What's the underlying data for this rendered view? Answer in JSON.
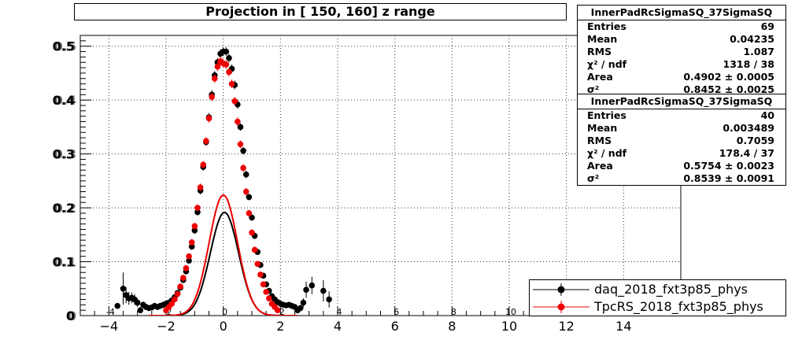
{
  "title": "Projection in [ 150, 160] z range",
  "colors": {
    "daq": "#000000",
    "tpcrs": "#ee0000",
    "grid": "#333333"
  },
  "stats": [
    {
      "name": "InnerPadRcSigmaSQ_37SigmaSQ",
      "rows": [
        {
          "label": "Entries",
          "value": "69"
        },
        {
          "label": "Mean",
          "value": "0.04235"
        },
        {
          "label": "RMS",
          "value": "1.087"
        },
        {
          "label": "χ² / ndf",
          "value": "1318 / 38"
        },
        {
          "label": "Area",
          "value": "0.4902 ± 0.0005"
        },
        {
          "label": "σ²",
          "value": "0.8452 ± 0.0025"
        }
      ]
    },
    {
      "name": "InnerPadRcSigmaSQ_37SigmaSQ",
      "rows": [
        {
          "label": "Entries",
          "value": "40"
        },
        {
          "label": "Mean",
          "value": "0.003489"
        },
        {
          "label": "RMS",
          "value": "0.7059"
        },
        {
          "label": "χ² / ndf",
          "value": "178.4 / 37"
        },
        {
          "label": "Area",
          "value": "0.5754 ± 0.0023"
        },
        {
          "label": "σ²",
          "value": "0.8539 ± 0.0091"
        }
      ]
    }
  ],
  "legend": [
    {
      "label": "daq_2018_fxt3p85_phys",
      "color": "#000000"
    },
    {
      "label": "TpcRS_2018_fxt3p85_phys",
      "color": "#ee0000"
    }
  ],
  "chart_data": {
    "type": "scatter",
    "xlim": [
      -5,
      16
    ],
    "ylim": [
      0,
      0.52
    ],
    "grid": true,
    "x_ticks": [
      -4,
      -2,
      0,
      2,
      4,
      6,
      8,
      10,
      12,
      14
    ],
    "x_tick_labels": [
      "−4",
      "−2",
      "0",
      "2",
      "4",
      "6",
      "8",
      "10",
      "12",
      "14"
    ],
    "x_ghost_ticks": [
      -4,
      -2,
      0,
      2,
      4,
      6,
      8,
      10
    ],
    "x_ghost_tick_labels": [
      "-4",
      "-2",
      "0",
      "2",
      "4",
      "6",
      "8",
      "10"
    ],
    "y_ticks": [
      0,
      0.1,
      0.2,
      0.3,
      0.4,
      0.5
    ],
    "y_tick_labels": [
      "0",
      "0.1",
      "0.2",
      "0.3",
      "0.4",
      "0.5"
    ],
    "series": [
      {
        "name": "daq_2018_fxt3p85_phys",
        "color": "#000000",
        "fit": {
          "area": 0.4902,
          "sigma2": 0.8452,
          "mean": 0.04235
        },
        "points": [
          [
            -3.7,
            0.018,
            0.005
          ],
          [
            -3.5,
            0.05,
            0.03
          ],
          [
            -3.4,
            0.038,
            0.015
          ],
          [
            -3.3,
            0.032,
            0.012
          ],
          [
            -3.2,
            0.033,
            0.01
          ],
          [
            -3.1,
            0.03,
            0.01
          ],
          [
            -3.0,
            0.024,
            0.008
          ],
          [
            -2.9,
            0.01,
            0.006
          ],
          [
            -2.8,
            0.02,
            0.006
          ],
          [
            -2.7,
            0.016,
            0.005
          ],
          [
            -2.6,
            0.014,
            0.005
          ],
          [
            -2.5,
            0.015,
            0.005
          ],
          [
            -2.4,
            0.018,
            0.005
          ],
          [
            -2.3,
            0.016,
            0.004
          ],
          [
            -2.2,
            0.018,
            0.004
          ],
          [
            -2.1,
            0.02,
            0.004
          ],
          [
            -2.0,
            0.022,
            0.004
          ],
          [
            -1.9,
            0.024,
            0.004
          ],
          [
            -1.8,
            0.028,
            0.004
          ],
          [
            -1.7,
            0.034,
            0.004
          ],
          [
            -1.6,
            0.042,
            0.004
          ],
          [
            -1.5,
            0.052,
            0.004
          ],
          [
            -1.4,
            0.066,
            0.005
          ],
          [
            -1.3,
            0.082,
            0.005
          ],
          [
            -1.2,
            0.102,
            0.005
          ],
          [
            -1.1,
            0.128,
            0.006
          ],
          [
            -1.0,
            0.158,
            0.006
          ],
          [
            -0.9,
            0.192,
            0.006
          ],
          [
            -0.8,
            0.232,
            0.007
          ],
          [
            -0.7,
            0.276,
            0.007
          ],
          [
            -0.6,
            0.322,
            0.007
          ],
          [
            -0.5,
            0.368,
            0.008
          ],
          [
            -0.4,
            0.41,
            0.008
          ],
          [
            -0.3,
            0.446,
            0.008
          ],
          [
            -0.2,
            0.47,
            0.008
          ],
          [
            -0.1,
            0.486,
            0.008
          ],
          [
            0.0,
            0.49,
            0.008
          ],
          [
            0.1,
            0.49,
            0.008
          ],
          [
            0.2,
            0.478,
            0.008
          ],
          [
            0.3,
            0.458,
            0.008
          ],
          [
            0.4,
            0.428,
            0.008
          ],
          [
            0.5,
            0.392,
            0.008
          ],
          [
            0.6,
            0.35,
            0.007
          ],
          [
            0.7,
            0.306,
            0.007
          ],
          [
            0.8,
            0.262,
            0.007
          ],
          [
            0.9,
            0.22,
            0.006
          ],
          [
            1.0,
            0.182,
            0.006
          ],
          [
            1.1,
            0.148,
            0.006
          ],
          [
            1.2,
            0.118,
            0.005
          ],
          [
            1.3,
            0.094,
            0.005
          ],
          [
            1.4,
            0.074,
            0.005
          ],
          [
            1.5,
            0.058,
            0.004
          ],
          [
            1.6,
            0.046,
            0.004
          ],
          [
            1.7,
            0.036,
            0.004
          ],
          [
            1.8,
            0.03,
            0.004
          ],
          [
            1.9,
            0.025,
            0.004
          ],
          [
            2.0,
            0.022,
            0.004
          ],
          [
            2.1,
            0.02,
            0.004
          ],
          [
            2.2,
            0.019,
            0.004
          ],
          [
            2.3,
            0.02,
            0.005
          ],
          [
            2.4,
            0.018,
            0.005
          ],
          [
            2.5,
            0.016,
            0.005
          ],
          [
            2.6,
            0.01,
            0.006
          ],
          [
            2.7,
            0.014,
            0.006
          ],
          [
            2.8,
            0.024,
            0.008
          ],
          [
            2.9,
            0.048,
            0.015
          ],
          [
            3.1,
            0.056,
            0.016
          ],
          [
            3.5,
            0.046,
            0.02
          ],
          [
            3.7,
            0.03,
            0.015
          ]
        ]
      },
      {
        "name": "TpcRS_2018_fxt3p85_phys",
        "color": "#ee0000",
        "fit": {
          "area": 0.5754,
          "sigma2": 0.8539,
          "mean": 0.003489
        },
        "points": [
          [
            -2.0,
            0.01,
            0.004
          ],
          [
            -1.9,
            0.016,
            0.004
          ],
          [
            -1.8,
            0.022,
            0.004
          ],
          [
            -1.7,
            0.03,
            0.004
          ],
          [
            -1.6,
            0.04,
            0.004
          ],
          [
            -1.5,
            0.054,
            0.004
          ],
          [
            -1.4,
            0.07,
            0.005
          ],
          [
            -1.3,
            0.088,
            0.005
          ],
          [
            -1.2,
            0.11,
            0.005
          ],
          [
            -1.1,
            0.136,
            0.006
          ],
          [
            -1.0,
            0.166,
            0.006
          ],
          [
            -0.9,
            0.2,
            0.006
          ],
          [
            -0.8,
            0.238,
            0.007
          ],
          [
            -0.7,
            0.28,
            0.007
          ],
          [
            -0.6,
            0.324,
            0.007
          ],
          [
            -0.5,
            0.366,
            0.008
          ],
          [
            -0.4,
            0.406,
            0.008
          ],
          [
            -0.3,
            0.44,
            0.008
          ],
          [
            -0.2,
            0.462,
            0.008
          ],
          [
            -0.1,
            0.472,
            0.008
          ],
          [
            0.0,
            0.468,
            0.008
          ],
          [
            0.1,
            0.466,
            0.008
          ],
          [
            0.2,
            0.452,
            0.008
          ],
          [
            0.3,
            0.43,
            0.008
          ],
          [
            0.4,
            0.398,
            0.008
          ],
          [
            0.5,
            0.36,
            0.008
          ],
          [
            0.6,
            0.318,
            0.007
          ],
          [
            0.7,
            0.274,
            0.007
          ],
          [
            0.8,
            0.23,
            0.007
          ],
          [
            0.9,
            0.19,
            0.006
          ],
          [
            1.0,
            0.154,
            0.006
          ],
          [
            1.1,
            0.122,
            0.006
          ],
          [
            1.2,
            0.096,
            0.005
          ],
          [
            1.3,
            0.076,
            0.005
          ],
          [
            1.4,
            0.058,
            0.004
          ],
          [
            1.5,
            0.044,
            0.004
          ],
          [
            1.6,
            0.032,
            0.004
          ],
          [
            1.7,
            0.022,
            0.004
          ],
          [
            1.8,
            0.016,
            0.004
          ],
          [
            1.9,
            0.01,
            0.004
          ]
        ]
      }
    ]
  }
}
